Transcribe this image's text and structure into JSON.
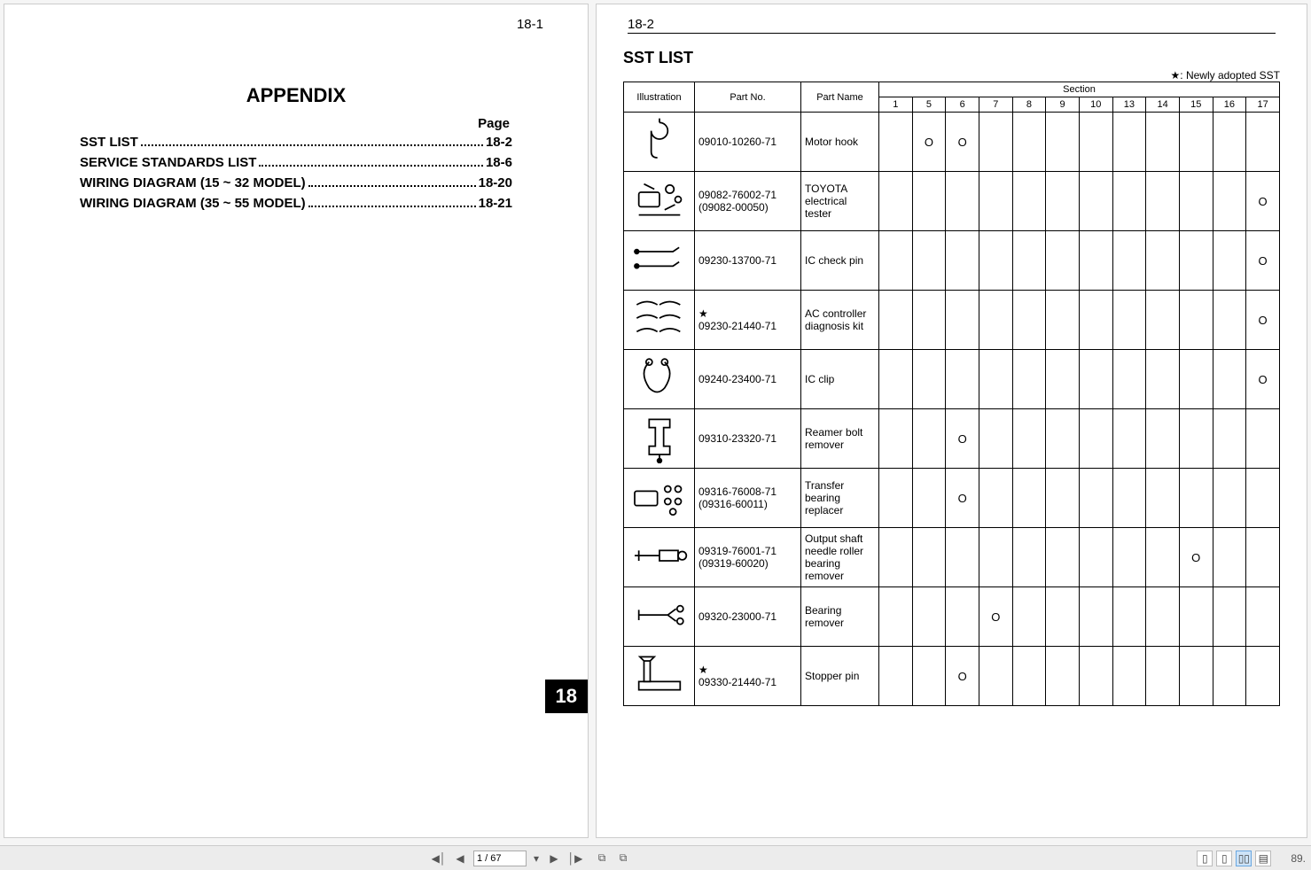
{
  "left_page": {
    "corner": "18-1",
    "title": "APPENDIX",
    "page_label": "Page",
    "toc": [
      {
        "label": "SST LIST",
        "page": "18-2"
      },
      {
        "label": "SERVICE STANDARDS LIST",
        "page": "18-6"
      },
      {
        "label": "WIRING DIAGRAM (15 ~ 32 MODEL)",
        "page": "18-20"
      },
      {
        "label": "WIRING DIAGRAM (35 ~ 55 MODEL)",
        "page": "18-21"
      }
    ],
    "chapter_badge": "18"
  },
  "right_page": {
    "corner": "18-2",
    "title": "SST LIST",
    "legend": "★: Newly adopted SST",
    "headers": {
      "illustration": "Illustration",
      "part_no": "Part No.",
      "part_name": "Part Name",
      "section": "Section",
      "section_cols": [
        "1",
        "5",
        "6",
        "7",
        "8",
        "9",
        "10",
        "13",
        "14",
        "15",
        "16",
        "17"
      ]
    },
    "rows": [
      {
        "icon": "hook",
        "part_no": "09010-10260-71",
        "name": "Motor hook",
        "marks": {
          "5": "O",
          "6": "O"
        }
      },
      {
        "icon": "tester",
        "part_no": "09082-76002-71\n(09082-00050)",
        "name": "TOYOTA electrical tester",
        "marks": {
          "17": "O"
        }
      },
      {
        "icon": "pin",
        "part_no": "09230-13700-71",
        "name": "IC check pin",
        "marks": {
          "17": "O"
        }
      },
      {
        "icon": "kit",
        "star": true,
        "part_no": "09230-21440-71",
        "name": "AC controller diagnosis kit",
        "marks": {
          "17": "O"
        }
      },
      {
        "icon": "clip",
        "part_no": "09240-23400-71",
        "name": "IC clip",
        "marks": {
          "17": "O"
        }
      },
      {
        "icon": "cclamp",
        "part_no": "09310-23320-71",
        "name": "Reamer bolt remover",
        "marks": {
          "6": "O"
        }
      },
      {
        "icon": "replacer",
        "part_no": "09316-76008-71\n(09316-60011)",
        "name": "Transfer bearing replacer",
        "marks": {
          "6": "O"
        }
      },
      {
        "icon": "puller",
        "part_no": "09319-76001-71\n(09319-60020)",
        "name": "Output shaft needle roller bearing remover",
        "marks": {
          "15": "O"
        }
      },
      {
        "icon": "remover",
        "part_no": "09320-23000-71",
        "name": "Bearing remover",
        "marks": {
          "7": "O"
        }
      },
      {
        "icon": "stopper",
        "star": true,
        "part_no": "09330-21440-71",
        "name": "Stopper pin",
        "marks": {
          "6": "O"
        }
      }
    ]
  },
  "toolbar": {
    "page_current": "1",
    "page_total": "67",
    "zoom": "89."
  },
  "colors": {
    "page_bg": "#ffffff",
    "viewer_bg": "#f5f5f5",
    "border": "#000000",
    "toolbar_bg": "#ececec",
    "active_view": "#cde3f8"
  }
}
